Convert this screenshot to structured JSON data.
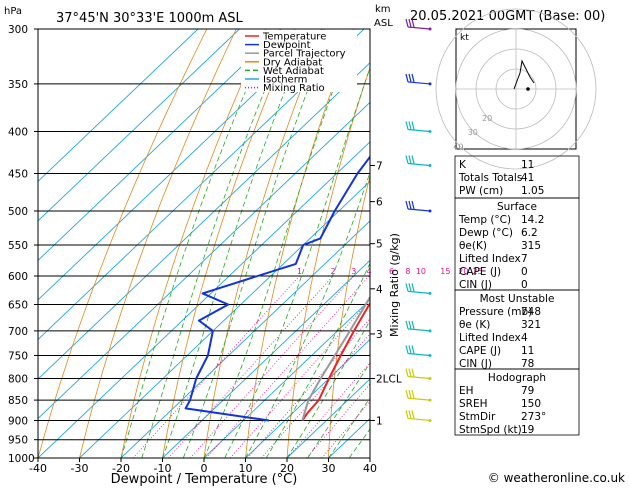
{
  "header": {
    "location": "37°45'N  30°33'E  1000m  ASL",
    "datetime": "20.05.2021  00GMT  (Base: 00)",
    "hpa_label": "hPa",
    "km_label": "km",
    "asl_label": "ASL"
  },
  "footer": {
    "copyright": "© weatheronline.co.uk"
  },
  "colors": {
    "temperature": "#ee2222",
    "dewpoint": "#1133dd",
    "parcel": "#999999",
    "dry_adiabat": "#e08a1a",
    "wet_adiabat": "#22aa22",
    "isotherm": "#22a8e0",
    "mixing_ratio": "#dd1199",
    "wind_upper": "#7722aa",
    "wind_high": "#1133dd",
    "wind_mid": "#11b8b8",
    "wind_low": "#cccc00"
  },
  "chart_data": [
    {
      "type": "line",
      "chart": "skew-t",
      "xlabel": "Dewpoint / Temperature (°C)",
      "ylabel_left": "hPa",
      "ylabel_right": "Mixing Ratio (g/kg)",
      "x_ticks": [
        -40,
        -30,
        -20,
        -10,
        0,
        10,
        20,
        30,
        40
      ],
      "xlim": [
        -40,
        40
      ],
      "ylim": [
        1000,
        300
      ],
      "y_scale": "log",
      "pressure_ticks": [
        300,
        350,
        400,
        450,
        500,
        550,
        600,
        650,
        700,
        750,
        800,
        850,
        900,
        950,
        1000
      ],
      "km_ticks": [
        {
          "label": "7",
          "p": 440
        },
        {
          "label": "6",
          "p": 487
        },
        {
          "label": "5",
          "p": 548
        },
        {
          "label": "4",
          "p": 622
        },
        {
          "label": "3",
          "p": 706
        },
        {
          "label": "2LCL",
          "p": 800
        },
        {
          "label": "1",
          "p": 900
        }
      ],
      "mixing_ratio_labels": [
        "1",
        "2",
        "3",
        "4",
        "6",
        "8",
        "10",
        "15",
        "20",
        "25"
      ],
      "mixing_ratio_values": [
        1,
        2,
        3,
        4,
        6,
        8,
        10,
        15,
        20,
        25
      ],
      "legend": [
        "Temperature",
        "Dewpoint",
        "Parcel Trajectory",
        "Dry Adiabat",
        "Wet Adiabat",
        "Isotherm",
        "Mixing Ratio"
      ],
      "legend_position": "top-right",
      "series": [
        {
          "name": "Temperature",
          "points": [
            [
              300,
              -31
            ],
            [
              330,
              -26
            ],
            [
              365,
              -19
            ],
            [
              375,
              -19
            ],
            [
              400,
              -15
            ],
            [
              450,
              -9
            ],
            [
              500,
              -4.5
            ],
            [
              540,
              -1.5
            ],
            [
              550,
              -5
            ],
            [
              585,
              -1
            ],
            [
              600,
              -1
            ],
            [
              650,
              1
            ],
            [
              700,
              4
            ],
            [
              750,
              7
            ],
            [
              800,
              10
            ],
            [
              850,
              13
            ],
            [
              880,
              13.5
            ],
            [
              900,
              14.2
            ]
          ]
        },
        {
          "name": "Dewpoint",
          "points": [
            [
              300,
              -46
            ],
            [
              340,
              -43
            ],
            [
              370,
              -41
            ],
            [
              380,
              -40
            ],
            [
              400,
              -38
            ],
            [
              450,
              -35
            ],
            [
              500,
              -31
            ],
            [
              540,
              -27.5
            ],
            [
              550,
              -30
            ],
            [
              580,
              -27
            ],
            [
              630,
              -42
            ],
            [
              650,
              -33
            ],
            [
              680,
              -36
            ],
            [
              700,
              -30
            ],
            [
              750,
              -25
            ],
            [
              800,
              -22
            ],
            [
              850,
              -18
            ],
            [
              870,
              -17
            ],
            [
              900,
              6.2
            ]
          ]
        },
        {
          "name": "Parcel Trajectory",
          "points": [
            [
              300,
              -39
            ],
            [
              400,
              -23
            ],
            [
              500,
              -11
            ],
            [
              600,
              -3
            ],
            [
              700,
              3
            ],
            [
              800,
              8
            ],
            [
              850,
              10.5
            ],
            [
              900,
              14.2
            ]
          ]
        }
      ],
      "wind_barbs": [
        {
          "p": 300,
          "color": "upper"
        },
        {
          "p": 350,
          "color": "high"
        },
        {
          "p": 400,
          "color": "mid"
        },
        {
          "p": 440,
          "color": "mid"
        },
        {
          "p": 500,
          "color": "high"
        },
        {
          "p": 630,
          "color": "mid"
        },
        {
          "p": 700,
          "color": "mid"
        },
        {
          "p": 750,
          "color": "mid"
        },
        {
          "p": 800,
          "color": "low"
        },
        {
          "p": 850,
          "color": "low"
        },
        {
          "p": 900,
          "color": "low"
        }
      ]
    },
    {
      "type": "scatter",
      "chart": "hodograph",
      "label": "kt",
      "ring_labels": [
        "40",
        "30",
        "20"
      ],
      "trace": [
        [
          -1,
          0
        ],
        [
          2,
          8
        ],
        [
          3,
          14
        ],
        [
          7,
          6
        ],
        [
          9,
          3
        ]
      ],
      "storm_motion": [
        6,
        0
      ]
    }
  ],
  "indices": {
    "top": [
      {
        "label": "K",
        "value": "11"
      },
      {
        "label": "Totals Totals",
        "value": "41"
      },
      {
        "label": "PW (cm)",
        "value": "1.05"
      }
    ],
    "surface": {
      "title": "Surface",
      "rows": [
        {
          "label": "Temp (°C)",
          "value": "14.2"
        },
        {
          "label": "Dewp (°C)",
          "value": "6.2"
        },
        {
          "label": "θe(K)",
          "value": "315"
        },
        {
          "label": "Lifted Index",
          "value": "7"
        },
        {
          "label": "CAPE (J)",
          "value": "0"
        },
        {
          "label": "CIN (J)",
          "value": "0"
        }
      ]
    },
    "most_unstable": {
      "title": "Most Unstable",
      "rows": [
        {
          "label": "Pressure (mb)",
          "value": "748"
        },
        {
          "label": "θe (K)",
          "value": "321"
        },
        {
          "label": "Lifted Index",
          "value": "4"
        },
        {
          "label": "CAPE (J)",
          "value": "11"
        },
        {
          "label": "CIN (J)",
          "value": "78"
        }
      ]
    },
    "hodograph": {
      "title": "Hodograph",
      "rows": [
        {
          "label": "EH",
          "value": "79"
        },
        {
          "label": "SREH",
          "value": "150"
        },
        {
          "label": "StmDir",
          "value": "273°"
        },
        {
          "label": "StmSpd (kt)",
          "value": "19"
        }
      ]
    }
  }
}
